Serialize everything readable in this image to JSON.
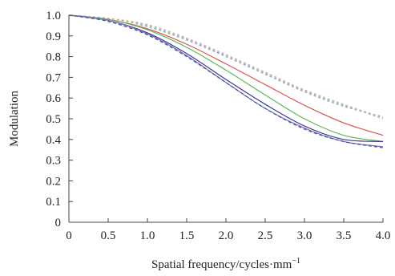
{
  "chart_data": {
    "type": "line",
    "title": "",
    "xlabel": "Spatial frequency/cycles·mm",
    "xlabel_sup": "−1",
    "ylabel": "Modulation",
    "xlim": [
      0,
      4.0
    ],
    "ylim": [
      0,
      1.0
    ],
    "grid": false,
    "legend": "none",
    "x_ticks": [
      "0",
      "0.5",
      "1.0",
      "1.5",
      "2.0",
      "2.5",
      "3.0",
      "3.5",
      "4.0"
    ],
    "y_ticks": [
      "0",
      "0.1",
      "0.2",
      "0.3",
      "0.4",
      "0.5",
      "0.6",
      "0.7",
      "0.8",
      "0.9",
      "1.0"
    ],
    "x": [
      0,
      0.5,
      1.0,
      1.5,
      2.0,
      2.5,
      3.0,
      3.5,
      4.0
    ],
    "series": [
      {
        "color": "#8fa0d4",
        "dash": "3,3",
        "values": [
          1.0,
          0.985,
          0.945,
          0.88,
          0.8,
          0.715,
          0.63,
          0.56,
          0.51
        ]
      },
      {
        "color": "#8fc9a8",
        "dash": "3,3",
        "values": [
          1.0,
          0.985,
          0.95,
          0.885,
          0.805,
          0.72,
          0.635,
          0.565,
          0.5
        ]
      },
      {
        "color": "#e8a0a0",
        "dash": "3,3",
        "values": [
          1.0,
          0.985,
          0.955,
          0.89,
          0.81,
          0.725,
          0.64,
          0.57,
          0.505
        ]
      },
      {
        "color": "#d9534f",
        "dash": "",
        "values": [
          1.0,
          0.98,
          0.935,
          0.86,
          0.765,
          0.665,
          0.565,
          0.48,
          0.42
        ]
      },
      {
        "color": "#5cb85c",
        "dash": "",
        "values": [
          1.0,
          0.98,
          0.93,
          0.845,
          0.735,
          0.615,
          0.5,
          0.42,
          0.39
        ]
      },
      {
        "color": "#3a3a8c",
        "dash": "",
        "values": [
          1.0,
          0.975,
          0.915,
          0.815,
          0.69,
          0.57,
          0.465,
          0.4,
          0.39
        ]
      },
      {
        "color": "#8a6bb8",
        "dash": "",
        "values": [
          1.0,
          0.975,
          0.91,
          0.805,
          0.675,
          0.55,
          0.455,
          0.39,
          0.365
        ]
      },
      {
        "color": "#2b5aa0",
        "dash": "4,3",
        "values": [
          1.0,
          0.97,
          0.905,
          0.8,
          0.675,
          0.55,
          0.45,
          0.39,
          0.36
        ]
      }
    ]
  }
}
